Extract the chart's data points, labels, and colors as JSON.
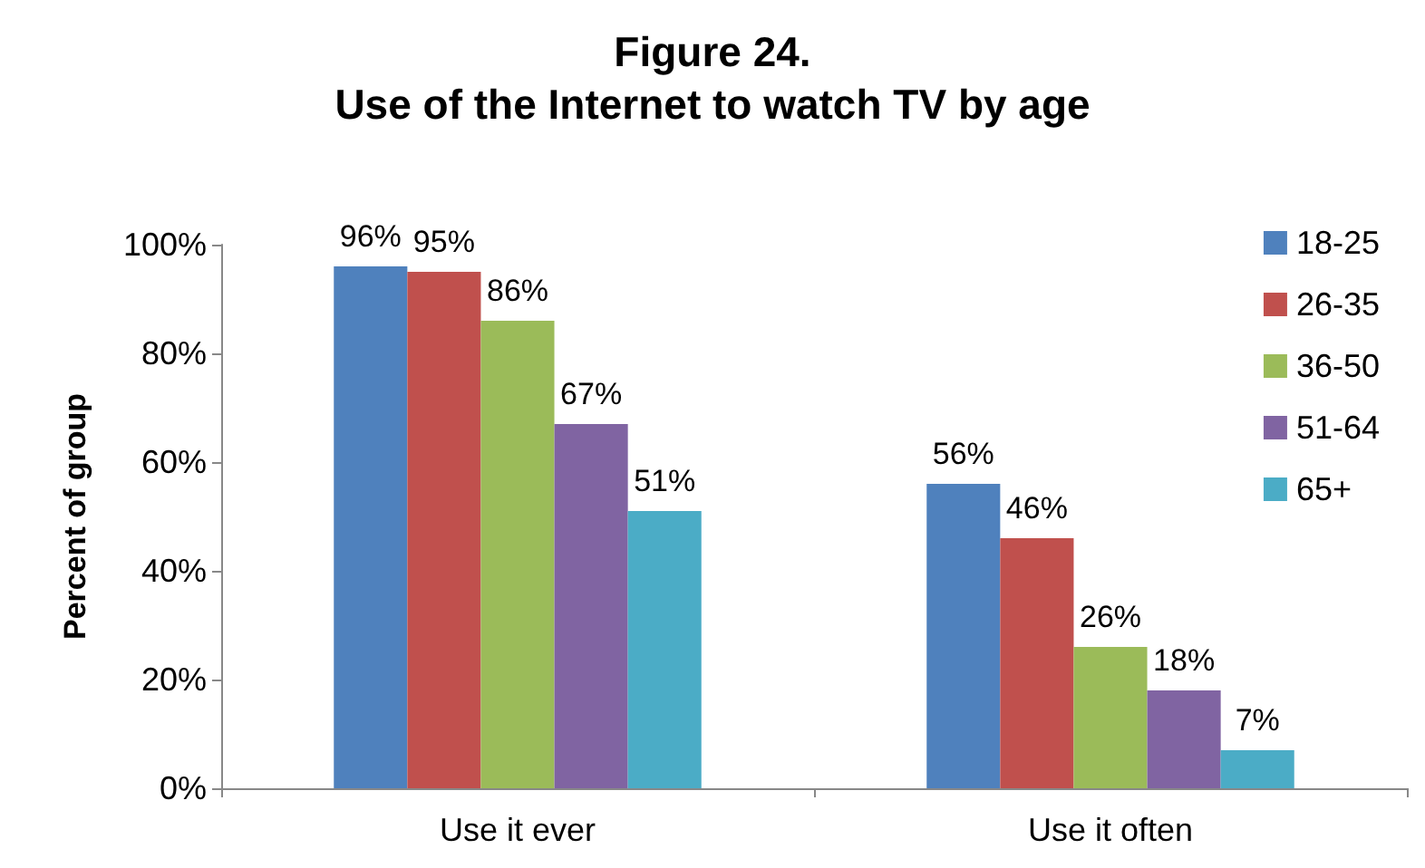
{
  "chart_data": {
    "type": "bar",
    "title": "Figure 24.",
    "subtitle": "Use of the Internet to watch TV by age",
    "ylabel": "Percent of group",
    "categories": [
      "Use it ever",
      "Use it often"
    ],
    "series": [
      {
        "name": "18-25",
        "color": "#4f81bd",
        "values": [
          96,
          56
        ],
        "value_labels": [
          "96%",
          "56%"
        ]
      },
      {
        "name": "26-35",
        "color": "#c0504d",
        "values": [
          95,
          46
        ],
        "value_labels": [
          "95%",
          "46%"
        ]
      },
      {
        "name": "36-50",
        "color": "#9bbb59",
        "values": [
          86,
          26
        ],
        "value_labels": [
          "86%",
          "26%"
        ]
      },
      {
        "name": "51-64",
        "color": "#8064a2",
        "values": [
          67,
          18
        ],
        "value_labels": [
          "67%",
          "18%"
        ]
      },
      {
        "name": "65+",
        "color": "#4bacc6",
        "values": [
          51,
          7
        ],
        "value_labels": [
          "51%",
          "7%"
        ]
      }
    ],
    "ylim": [
      0,
      100
    ],
    "yticks": [
      {
        "value": 0,
        "label": "0%"
      },
      {
        "value": 20,
        "label": "20%"
      },
      {
        "value": 40,
        "label": "40%"
      },
      {
        "value": 60,
        "label": "60%"
      },
      {
        "value": 80,
        "label": "80%"
      },
      {
        "value": 100,
        "label": "100%"
      }
    ],
    "grid": false,
    "legend": "top right"
  }
}
